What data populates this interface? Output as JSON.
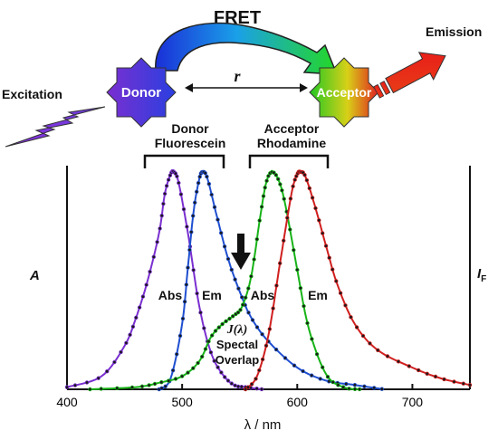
{
  "header": {
    "title": "FRET",
    "donor": "Donor",
    "acceptor": "Acceptor",
    "distance": "r",
    "excitation": "Excitation",
    "emission": "Emission"
  },
  "groups": {
    "donor_line1": "Donor",
    "donor_line2": "Fluorescein",
    "acceptor_line1": "Acceptor",
    "acceptor_line2": "Rhodamine"
  },
  "annotations": {
    "abs_donor": "Abs",
    "em_donor": "Em",
    "abs_acceptor": "Abs",
    "em_acceptor": "Em",
    "overlap_symbol": "J(λ)",
    "overlap_line1": "Spectal",
    "overlap_line2": "Overlap"
  },
  "colors": {
    "donor_abs": "#7a2fd0",
    "donor_em": "#1f4fd0",
    "acceptor_abs": "#17b317",
    "acceptor_em": "#d01f1f",
    "arrow_start": "#1f3fe0",
    "arrow_end": "#22d822",
    "emission_arrow": "#e81f1f"
  },
  "chart_data": {
    "type": "line",
    "xlabel": "λ / nm",
    "ylabel_left": "A",
    "ylabel_right": "I",
    "ylabel_right_sub": "F",
    "xlim": [
      400,
      750
    ],
    "ylim": [
      0,
      1
    ],
    "xticks": [
      400,
      500,
      600,
      700
    ],
    "grid": false,
    "series": [
      {
        "name": "Abs",
        "group": "Donor Fluorescein",
        "color_key": "donor_abs",
        "x": [
          400,
          430,
          450,
          460,
          470,
          480,
          485,
          490,
          493,
          497,
          505,
          515,
          525,
          535,
          545,
          555,
          570
        ],
        "y": [
          0.01,
          0.06,
          0.2,
          0.33,
          0.5,
          0.72,
          0.9,
          0.99,
          1.0,
          0.95,
          0.72,
          0.38,
          0.17,
          0.07,
          0.02,
          0.01,
          0.0
        ]
      },
      {
        "name": "Em",
        "group": "Donor Fluorescein",
        "color_key": "donor_em",
        "x": [
          480,
          490,
          500,
          505,
          510,
          515,
          518,
          522,
          530,
          540,
          550,
          560,
          575,
          600,
          625,
          650,
          675
        ],
        "y": [
          0.0,
          0.05,
          0.3,
          0.56,
          0.82,
          0.97,
          1.0,
          0.97,
          0.8,
          0.6,
          0.45,
          0.33,
          0.22,
          0.1,
          0.04,
          0.02,
          0.0
        ]
      },
      {
        "name": "Abs",
        "group": "Acceptor Rhodamine",
        "color_key": "acceptor_abs",
        "x": [
          420,
          460,
          480,
          500,
          515,
          525,
          535,
          545,
          552,
          560,
          568,
          573,
          578,
          584,
          590,
          600,
          610,
          625,
          640,
          655
        ],
        "y": [
          0.0,
          0.01,
          0.03,
          0.06,
          0.13,
          0.24,
          0.3,
          0.34,
          0.38,
          0.52,
          0.8,
          0.95,
          1.0,
          0.96,
          0.84,
          0.55,
          0.28,
          0.07,
          0.01,
          0.0
        ]
      },
      {
        "name": "Em",
        "group": "Acceptor Rhodamine",
        "color_key": "acceptor_em",
        "x": [
          555,
          565,
          575,
          585,
          595,
          600,
          603,
          607,
          615,
          625,
          635,
          650,
          670,
          700,
          725,
          750
        ],
        "y": [
          0.0,
          0.06,
          0.25,
          0.58,
          0.9,
          0.99,
          1.0,
          0.98,
          0.85,
          0.66,
          0.48,
          0.3,
          0.18,
          0.1,
          0.05,
          0.02
        ]
      }
    ]
  }
}
